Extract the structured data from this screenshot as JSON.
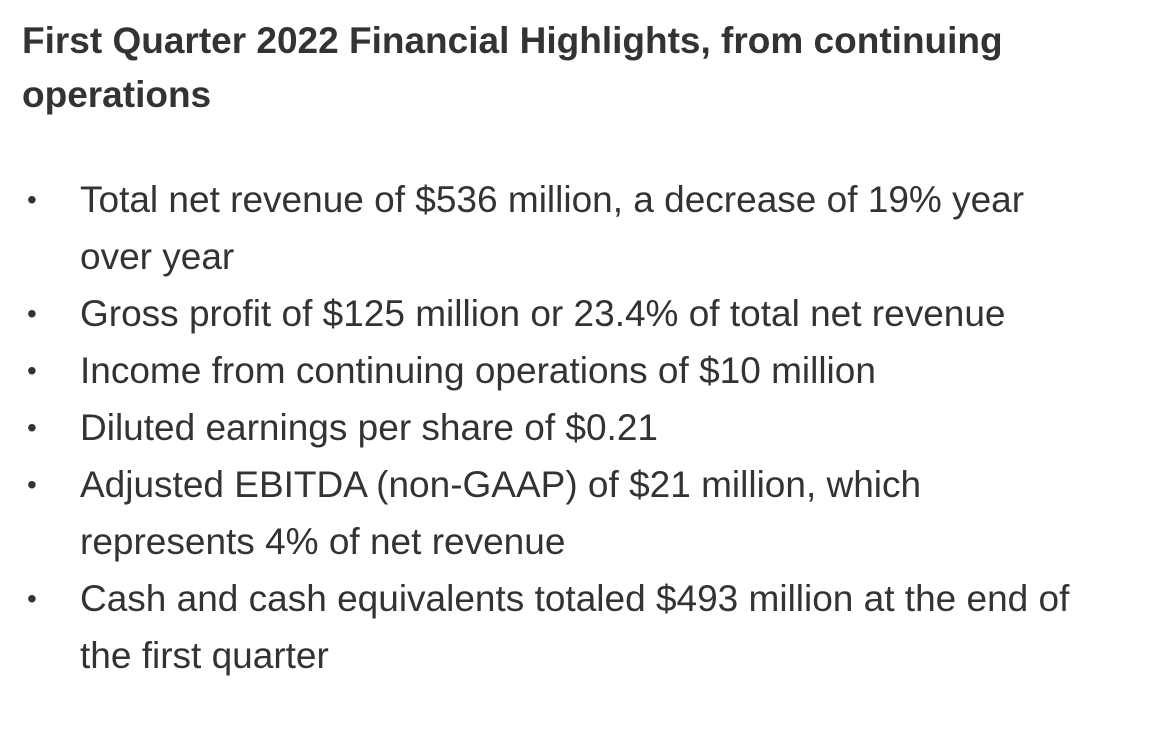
{
  "heading": "First Quarter 2022 Financial Highlights, from continuing operations",
  "bullet_symbol": "•",
  "highlights": [
    "Total net revenue of $536 million, a decrease of 19% year over year",
    "Gross profit of $125 million or 23.4% of total net revenue",
    "Income from continuing operations of $10 million",
    "Diluted earnings per share of $0.21",
    "Adjusted EBITDA (non-GAAP) of $21 million, which represents 4% of net revenue",
    "Cash and cash equivalents totaled $493 million at the end of the first quarter"
  ]
}
